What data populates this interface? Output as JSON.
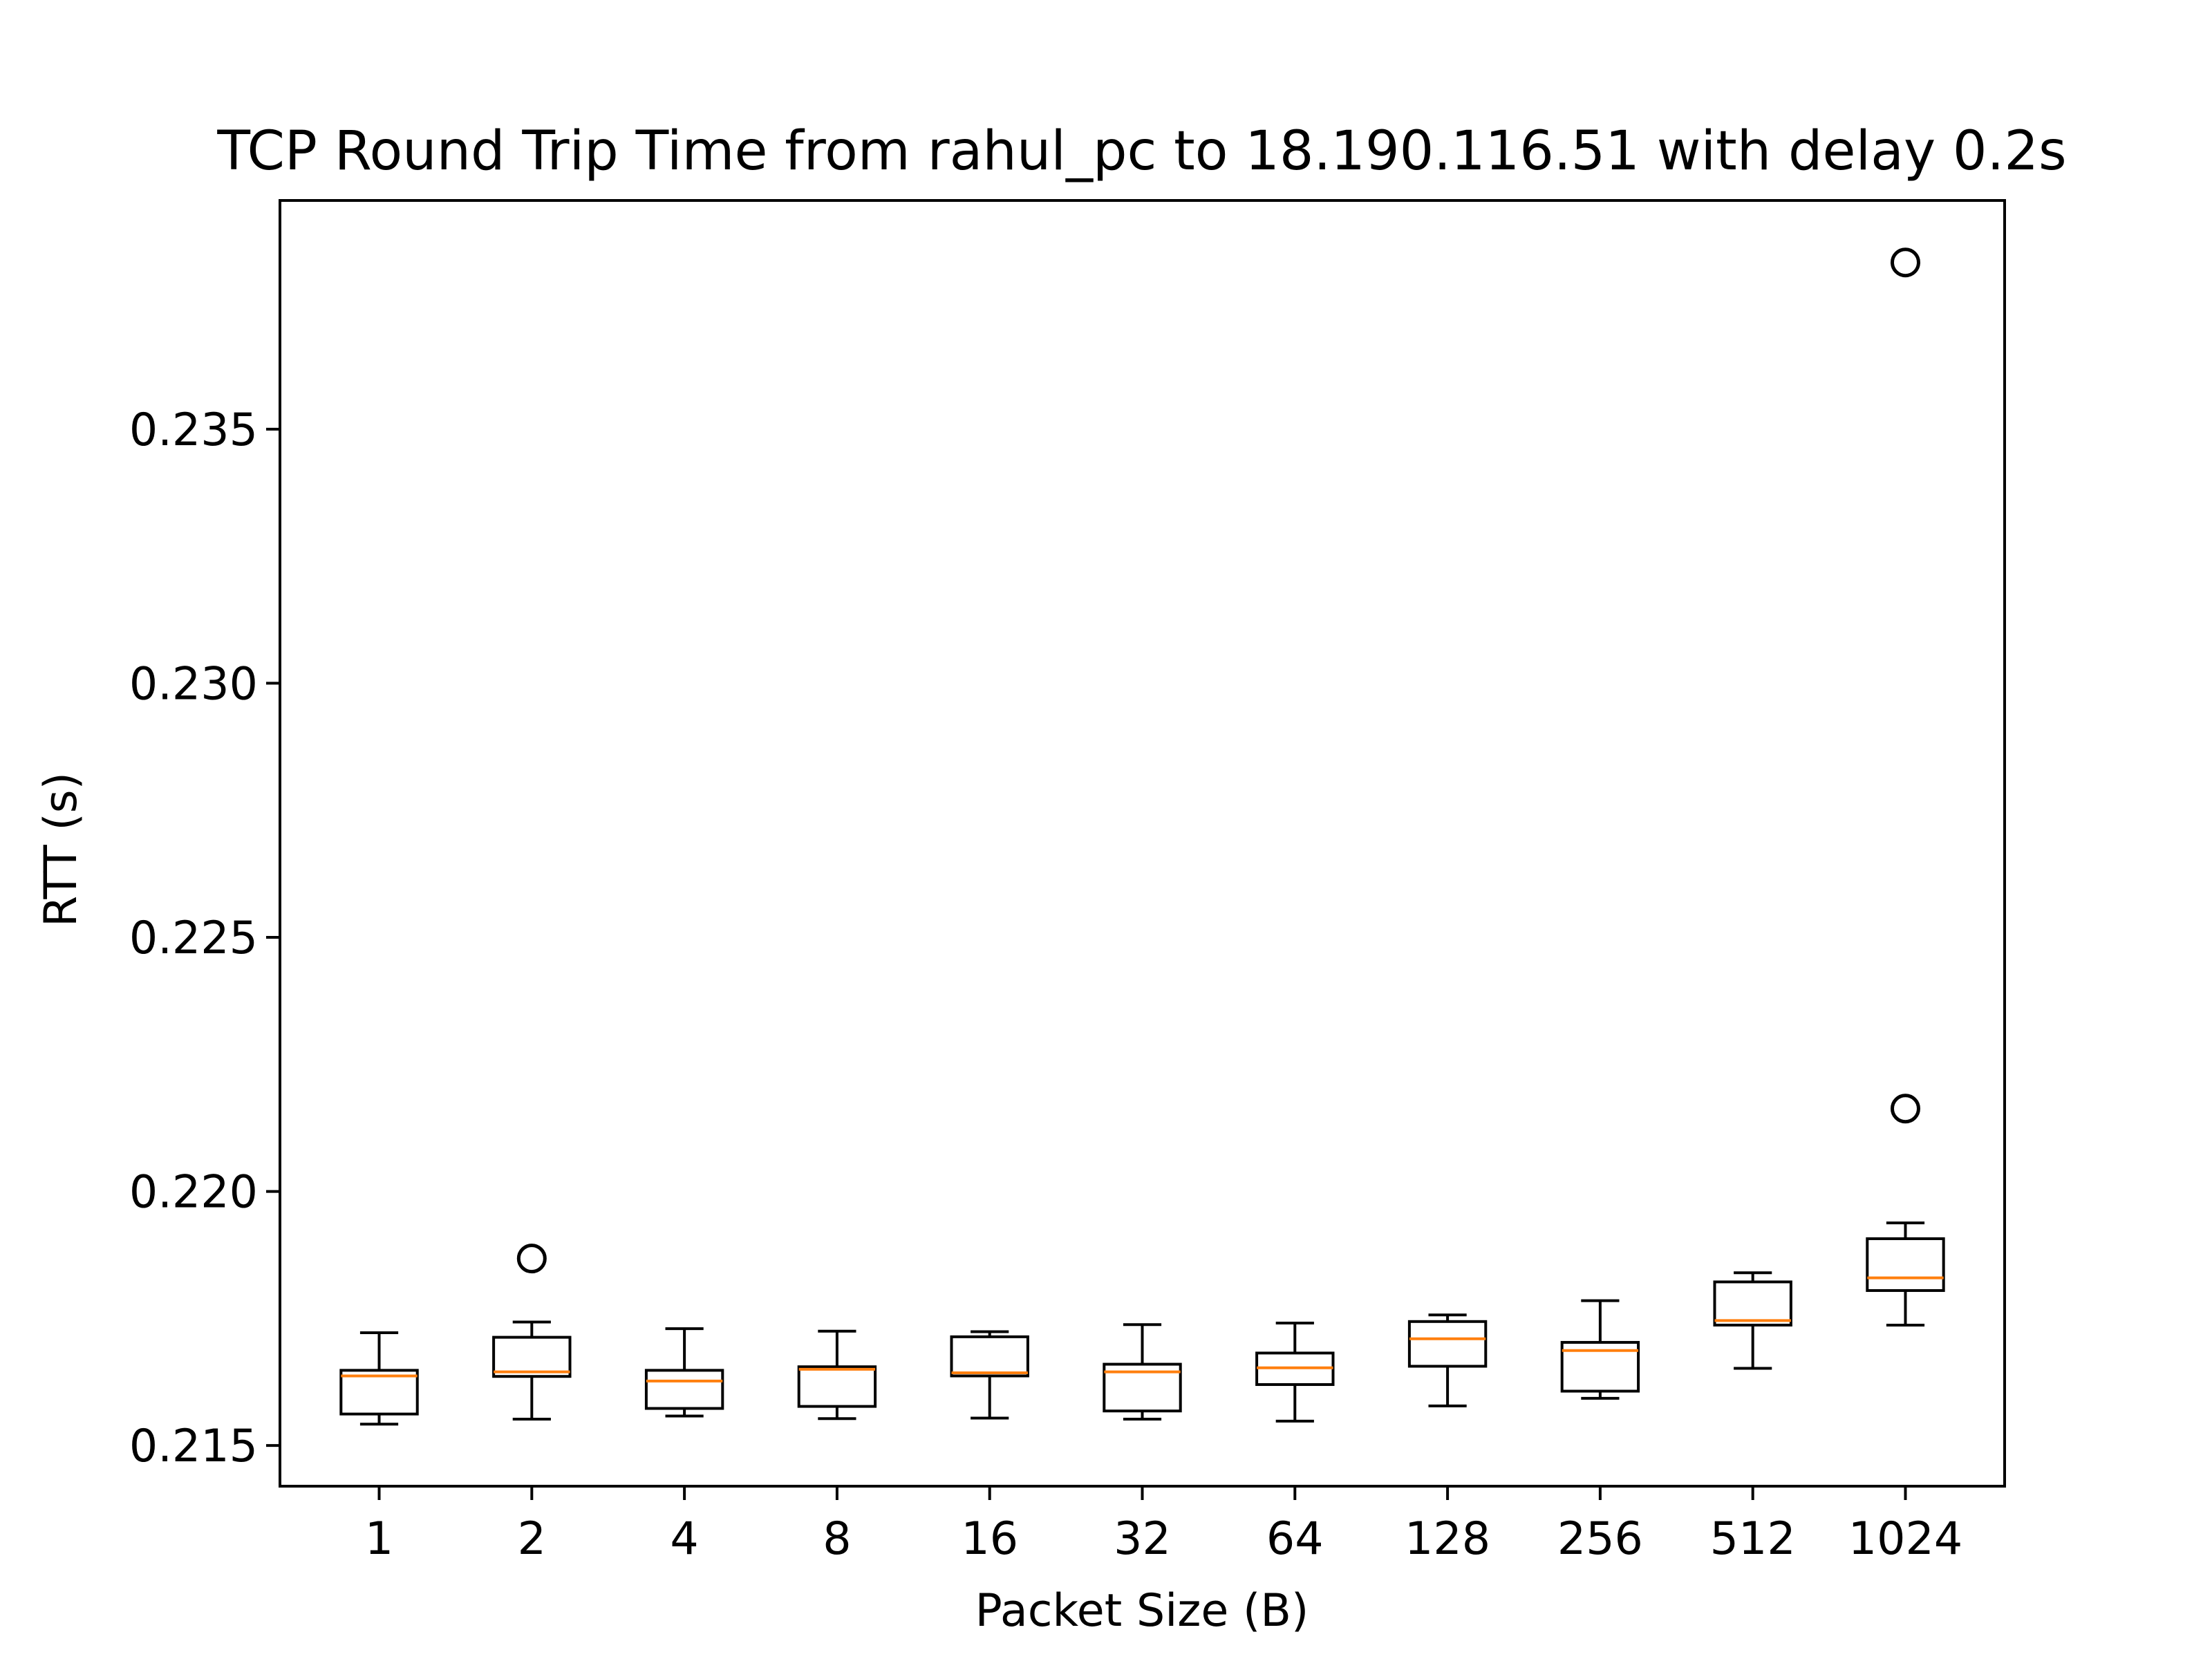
{
  "chart_data": {
    "type": "box",
    "title": "TCP Round Trip Time from rahul_pc to 18.190.116.51 with delay 0.2s",
    "xlabel": "Packet Size (B)",
    "ylabel": "RTT (s)",
    "categories": [
      "1",
      "2",
      "4",
      "8",
      "16",
      "32",
      "64",
      "128",
      "256",
      "512",
      "1024"
    ],
    "ylim": [
      0.2142,
      0.2395
    ],
    "yticks": [
      0.215,
      0.22,
      0.225,
      0.23,
      0.235
    ],
    "ytick_labels": [
      "0.215",
      "0.220",
      "0.225",
      "0.230",
      "0.235"
    ],
    "grid": false,
    "legend": "none",
    "colors": {
      "box": "#000000",
      "median": "#ff7f0e",
      "outlier": "#000000"
    },
    "boxes": [
      {
        "category": "1",
        "whisker_low": 0.21542,
        "q1": 0.21562,
        "median": 0.21637,
        "q3": 0.21648,
        "whisker_high": 0.21722,
        "outliers": []
      },
      {
        "category": "2",
        "whisker_low": 0.21552,
        "q1": 0.21636,
        "median": 0.21645,
        "q3": 0.21713,
        "whisker_high": 0.21743,
        "outliers": [
          0.21868
        ]
      },
      {
        "category": "4",
        "whisker_low": 0.21558,
        "q1": 0.21573,
        "median": 0.21627,
        "q3": 0.21648,
        "whisker_high": 0.2173,
        "outliers": []
      },
      {
        "category": "8",
        "whisker_low": 0.21553,
        "q1": 0.21577,
        "median": 0.2165,
        "q3": 0.21655,
        "whisker_high": 0.21725,
        "outliers": []
      },
      {
        "category": "16",
        "whisker_low": 0.21554,
        "q1": 0.21637,
        "median": 0.21643,
        "q3": 0.21714,
        "whisker_high": 0.21724,
        "outliers": []
      },
      {
        "category": "32",
        "whisker_low": 0.21552,
        "q1": 0.21568,
        "median": 0.21645,
        "q3": 0.2166,
        "whisker_high": 0.21738,
        "outliers": []
      },
      {
        "category": "64",
        "whisker_low": 0.21548,
        "q1": 0.2162,
        "median": 0.21653,
        "q3": 0.21682,
        "whisker_high": 0.21741,
        "outliers": []
      },
      {
        "category": "128",
        "whisker_low": 0.21578,
        "q1": 0.21656,
        "median": 0.2171,
        "q3": 0.21744,
        "whisker_high": 0.21757,
        "outliers": []
      },
      {
        "category": "256",
        "whisker_low": 0.21593,
        "q1": 0.21607,
        "median": 0.21687,
        "q3": 0.21703,
        "whisker_high": 0.21785,
        "outliers": []
      },
      {
        "category": "512",
        "whisker_low": 0.21652,
        "q1": 0.21737,
        "median": 0.21746,
        "q3": 0.21822,
        "whisker_high": 0.2184,
        "outliers": []
      },
      {
        "category": "1024",
        "whisker_low": 0.21737,
        "q1": 0.21805,
        "median": 0.2183,
        "q3": 0.21907,
        "whisker_high": 0.21938,
        "outliers": [
          0.22163,
          0.23828
        ]
      }
    ]
  }
}
